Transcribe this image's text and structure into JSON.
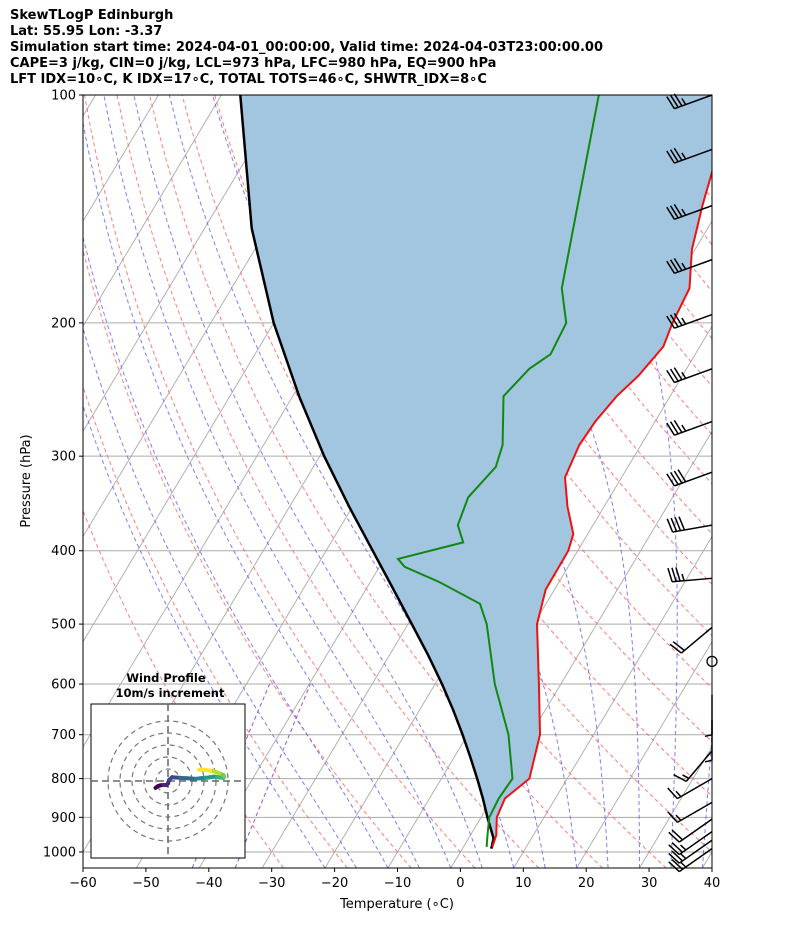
{
  "title": {
    "line1": "SkewTLogP Edinburgh",
    "line2": "Lat: 55.95   Lon: -3.37",
    "line3": "Simulation start time: 2024-04-01_00:00:00, Valid time: 2024-04-03T23:00:00.00",
    "line4": "CAPE=3 j/kg, CIN=0 j/kg, LCL=973 hPa, LFC=980 hPa, EQ=900 hPa",
    "line5": "LFT IDX=10∘C, K IDX=17∘C, TOTAL TOTS=46∘C, SHWTR_IDX=8∘C"
  },
  "chart_data": {
    "type": "line",
    "xlabel": "Temperature (∘C)",
    "ylabel": "Pressure (hPa)",
    "xlim": [
      -60,
      40
    ],
    "ylim": [
      1050,
      100
    ],
    "skew_deg_per_log10": 72,
    "x_ticks": [
      -60,
      -50,
      -40,
      -30,
      -20,
      -10,
      0,
      10,
      20,
      30,
      40
    ],
    "x_tick_labels": [
      "−60",
      "−50",
      "−40",
      "−30",
      "−20",
      "−10",
      "0",
      "10",
      "20",
      "30",
      "40"
    ],
    "y_ticks": [
      100,
      200,
      300,
      400,
      500,
      600,
      700,
      800,
      900,
      1000
    ],
    "y_tick_labels": [
      "100",
      "200",
      "300",
      "400",
      "500",
      "600",
      "700",
      "800",
      "900",
      "1000"
    ],
    "colors": {
      "temperature": "#ee1111",
      "dewpoint": "#118811",
      "parcel": "#000000",
      "cape_fill": "#a3c6e0",
      "dry_adiabat": "#ff6666",
      "moist_adiabat": "#6666ff",
      "isotherm": "#aaaaaa",
      "mixing_ratio": "#9955cc",
      "wind_barb": "#000000"
    },
    "series": [
      {
        "name": "temperature",
        "pressure": [
          985,
          950,
          900,
          850,
          800,
          700,
          600,
          500,
          450,
          400,
          380,
          350,
          320,
          290,
          270,
          250,
          235,
          215,
          200,
          180,
          160,
          140,
          120,
          100
        ],
        "values": [
          4.6,
          4.1,
          2.5,
          2.0,
          4.0,
          1.5,
          -3.5,
          -9.5,
          -11.4,
          -11.5,
          -12.3,
          -15.8,
          -19.0,
          -19.8,
          -19.5,
          -18.5,
          -17.0,
          -15.8,
          -16.6,
          -17.2,
          -20.5,
          -23.0,
          -25.5,
          -29.0
        ]
      },
      {
        "name": "dewpoint",
        "pressure": [
          985,
          950,
          900,
          850,
          800,
          700,
          600,
          500,
          470,
          440,
          420,
          410,
          390,
          370,
          340,
          310,
          290,
          250,
          230,
          220,
          200,
          180,
          100
        ],
        "values": [
          3.7,
          2.7,
          1.3,
          1.0,
          1.3,
          -3.5,
          -10.5,
          -17.5,
          -20.5,
          -29.0,
          -36.0,
          -37.8,
          -29.0,
          -31.5,
          -32.5,
          -31.0,
          -32.0,
          -36.5,
          -35.0,
          -33.0,
          -33.5,
          -37.5,
          -50.0
        ]
      },
      {
        "name": "parcel",
        "pressure": [
          990,
          960,
          900,
          850,
          800,
          750,
          700,
          650,
          600,
          550,
          500,
          450,
          400,
          350,
          300,
          250,
          200,
          150,
          100
        ],
        "values": [
          4.6,
          4.0,
          1.0,
          -1.5,
          -4.3,
          -7.4,
          -10.8,
          -14.6,
          -18.9,
          -23.8,
          -29.4,
          -35.6,
          -42.6,
          -50.5,
          -59.3,
          -69.0,
          -80.0,
          -92.5,
          -107.0
        ]
      }
    ],
    "wind_barbs": {
      "pressure": [
        100,
        118,
        140,
        165,
        195,
        230,
        270,
        315,
        370,
        435,
        505,
        560,
        620,
        670,
        735,
        800,
        860,
        905,
        940,
        965,
        990
      ],
      "speed_kt": [
        35,
        35,
        35,
        35,
        35,
        35,
        35,
        40,
        40,
        35,
        20,
        0,
        5,
        5,
        15,
        15,
        15,
        20,
        25,
        25,
        25
      ],
      "direction_deg": [
        250,
        250,
        250,
        250,
        250,
        250,
        250,
        250,
        260,
        265,
        230,
        0,
        180,
        180,
        220,
        240,
        240,
        235,
        235,
        235,
        235
      ]
    },
    "inset": {
      "title1": "Wind Profile",
      "title2": "10m/s increment",
      "ring_step_ms": 10,
      "hodograph_u": [
        -4.0,
        -3.3,
        -2.5,
        -1.5,
        -0.5,
        0.0,
        0.4,
        1.3,
        4.0,
        6.0,
        7.5,
        8.8,
        10.5,
        12.0,
        13.5,
        14.8,
        15.8,
        16.5,
        17.8,
        18.0,
        17.8,
        16.5,
        15.5,
        14.5,
        13.5,
        11.5,
        10.0
      ],
      "hodograph_v": [
        -2.2,
        -1.7,
        -1.4,
        -1.3,
        -1.3,
        -0.8,
        0.4,
        1.2,
        1.0,
        0.9,
        0.8,
        0.7,
        0.9,
        1.0,
        1.2,
        1.4,
        1.3,
        1.1,
        1.0,
        1.4,
        1.8,
        2.5,
        2.8,
        3.3,
        3.3,
        3.6,
        3.6
      ]
    }
  }
}
